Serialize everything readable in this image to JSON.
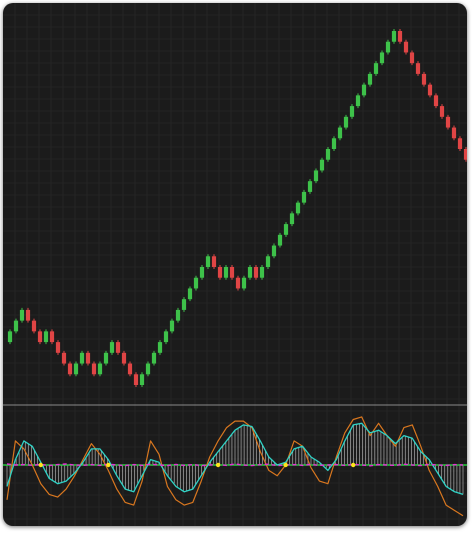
{
  "theme": {
    "background": "#1b1b1b",
    "grid": "#2c2c2c",
    "up": "#3ec24a",
    "down": "#e04545",
    "separator": "#8a8a8a",
    "osc_fast": "#2fd3c6",
    "osc_slow": "#d9771f",
    "osc_hist": "#ffffff",
    "zero_line": "#27c93f",
    "signal_line": "#e62fd6",
    "dot_yellow": "#ffe51a"
  },
  "chart_data": [
    {
      "type": "renko",
      "title": "",
      "grid": true,
      "bricks": [
        "up",
        "up",
        "up",
        "down",
        "down",
        "down",
        "up",
        "down",
        "down",
        "down",
        "down",
        "up",
        "up",
        "down",
        "down",
        "up",
        "up",
        "up",
        "down",
        "down",
        "down",
        "down",
        "up",
        "up",
        "up",
        "up",
        "up",
        "up",
        "up",
        "up",
        "up",
        "up",
        "up",
        "up",
        "down",
        "down",
        "up",
        "down",
        "down",
        "up",
        "up",
        "down",
        "up",
        "up",
        "up",
        "up",
        "up",
        "up",
        "up",
        "up",
        "up",
        "up",
        "up",
        "up",
        "up",
        "up",
        "up",
        "up",
        "up",
        "up",
        "up",
        "up",
        "up",
        "up",
        "up",
        "down",
        "down",
        "down",
        "down",
        "down",
        "down",
        "down",
        "down",
        "down",
        "down",
        "down",
        "down"
      ]
    },
    {
      "type": "line",
      "title": "",
      "grid": true,
      "ylim": [
        -1,
        1
      ],
      "series": [
        {
          "role": "fast",
          "values": [
            -0.4,
            0.1,
            0.45,
            0.35,
            0.05,
            -0.25,
            -0.35,
            -0.3,
            -0.15,
            0.05,
            0.3,
            0.3,
            0.1,
            -0.2,
            -0.45,
            -0.5,
            -0.2,
            0.1,
            0.05,
            -0.2,
            -0.4,
            -0.5,
            -0.45,
            -0.2,
            0.05,
            0.25,
            0.45,
            0.65,
            0.75,
            0.72,
            0.45,
            0.15,
            0.0,
            0.05,
            0.3,
            0.35,
            0.15,
            0.05,
            -0.1,
            0.1,
            0.45,
            0.75,
            0.78,
            0.6,
            0.65,
            0.55,
            0.4,
            0.55,
            0.5,
            0.25,
            0.1,
            -0.15,
            -0.4,
            -0.5,
            -0.55
          ]
        },
        {
          "role": "slow",
          "values": [
            -0.65,
            0.45,
            0.3,
            0.0,
            -0.35,
            -0.55,
            -0.6,
            -0.45,
            -0.2,
            0.1,
            0.4,
            0.2,
            -0.1,
            -0.45,
            -0.7,
            -0.75,
            -0.3,
            0.45,
            0.2,
            -0.4,
            -0.65,
            -0.75,
            -0.7,
            -0.3,
            0.15,
            0.45,
            0.7,
            0.82,
            0.82,
            0.7,
            0.25,
            -0.1,
            -0.2,
            0.0,
            0.45,
            0.35,
            -0.05,
            -0.3,
            -0.35,
            0.15,
            0.6,
            0.85,
            0.9,
            0.55,
            0.78,
            0.55,
            0.35,
            0.7,
            0.75,
            0.35,
            -0.1,
            -0.4,
            -0.75,
            -0.85,
            -0.95
          ]
        },
        {
          "role": "signal",
          "values": [
            -0.05,
            0.0,
            -0.02,
            0.02,
            -0.03,
            0.03,
            -0.02,
            -0.05,
            0.0,
            0.02,
            -0.02,
            0.02,
            -0.04,
            0.0,
            0.03,
            -0.02,
            0.02,
            -0.04,
            0.0,
            0.03,
            -0.03,
            0.02,
            -0.02,
            0.03,
            0.0,
            -0.02,
            0.02,
            -0.05,
            0.0,
            0.03,
            -0.02,
            -0.04,
            0.03,
            0.0,
            -0.02,
            0.02,
            -0.03,
            0.02,
            0.0,
            -0.02,
            0.02,
            -0.03,
            0.0,
            0.04,
            -0.02,
            0.0,
            0.02,
            -0.04,
            0.0,
            0.03,
            -0.03,
            0.0,
            0.02,
            -0.02,
            0.0
          ]
        }
      ],
      "markers": {
        "color": "dot_yellow",
        "x": [
          4,
          12,
          25,
          33,
          41
        ]
      }
    }
  ]
}
